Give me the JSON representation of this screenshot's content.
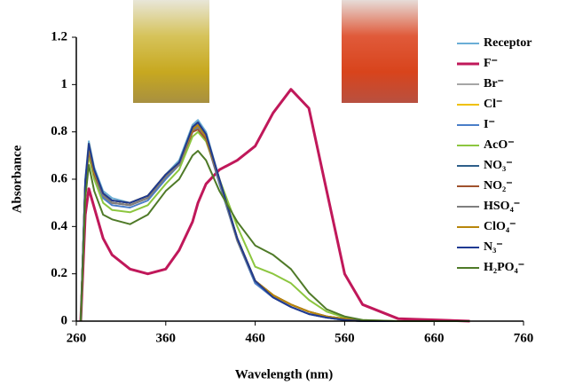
{
  "chart_data": {
    "type": "line",
    "x_label": "Wavelength (nm)",
    "y_label": "Absorbance",
    "x": [
      265,
      270,
      274,
      280,
      290,
      300,
      320,
      340,
      360,
      375,
      390,
      396,
      405,
      420,
      440,
      460,
      480,
      500,
      520,
      540,
      560,
      580,
      620,
      700
    ],
    "xlim": [
      260,
      760
    ],
    "xticks": [
      260,
      360,
      460,
      560,
      660,
      760
    ],
    "ylim": [
      0,
      1.2
    ],
    "yticks": [
      0,
      0.2,
      0.4,
      0.6,
      0.8,
      1,
      1.2
    ],
    "series": [
      {
        "name": "Receptor",
        "color": "#6aaed6",
        "values": [
          0,
          0.6,
          0.76,
          0.65,
          0.55,
          0.52,
          0.5,
          0.53,
          0.62,
          0.68,
          0.83,
          0.85,
          0.8,
          0.6,
          0.35,
          0.17,
          0.1,
          0.06,
          0.03,
          0.015,
          0.005,
          0,
          0,
          0
        ]
      },
      {
        "name": "F⁻",
        "color": "#c0185a",
        "values": [
          0,
          0.45,
          0.56,
          0.48,
          0.35,
          0.28,
          0.22,
          0.2,
          0.22,
          0.3,
          0.42,
          0.5,
          0.58,
          0.64,
          0.68,
          0.74,
          0.88,
          0.98,
          0.9,
          0.55,
          0.2,
          0.07,
          0.01,
          0
        ]
      },
      {
        "name": "Br⁻",
        "color": "#a6a6a6",
        "values": [
          0,
          0.58,
          0.74,
          0.63,
          0.53,
          0.5,
          0.49,
          0.52,
          0.61,
          0.67,
          0.81,
          0.83,
          0.78,
          0.59,
          0.34,
          0.16,
          0.1,
          0.06,
          0.03,
          0.015,
          0.005,
          0,
          0,
          0
        ]
      },
      {
        "name": "Cl⁻",
        "color": "#f0c000",
        "values": [
          0,
          0.59,
          0.75,
          0.64,
          0.54,
          0.51,
          0.5,
          0.53,
          0.62,
          0.67,
          0.82,
          0.84,
          0.79,
          0.6,
          0.35,
          0.17,
          0.11,
          0.07,
          0.04,
          0.02,
          0.01,
          0,
          0,
          0
        ]
      },
      {
        "name": "I⁻",
        "color": "#4a7ec8",
        "values": [
          0,
          0.57,
          0.73,
          0.62,
          0.52,
          0.49,
          0.48,
          0.51,
          0.6,
          0.66,
          0.8,
          0.82,
          0.77,
          0.58,
          0.34,
          0.16,
          0.1,
          0.06,
          0.03,
          0.015,
          0.005,
          0,
          0,
          0
        ]
      },
      {
        "name": "AcO⁻",
        "color": "#8cc63f",
        "values": [
          0,
          0.55,
          0.7,
          0.6,
          0.5,
          0.47,
          0.46,
          0.49,
          0.58,
          0.64,
          0.78,
          0.8,
          0.76,
          0.6,
          0.4,
          0.23,
          0.2,
          0.16,
          0.09,
          0.04,
          0.015,
          0.005,
          0,
          0
        ]
      },
      {
        "name": "NO₃⁻",
        "color": "#2e5f8a",
        "values": [
          0,
          0.59,
          0.74,
          0.64,
          0.54,
          0.51,
          0.5,
          0.53,
          0.62,
          0.67,
          0.82,
          0.84,
          0.79,
          0.6,
          0.35,
          0.17,
          0.11,
          0.07,
          0.04,
          0.02,
          0.01,
          0,
          0,
          0
        ]
      },
      {
        "name": "NO₂⁻",
        "color": "#a0522d",
        "values": [
          0,
          0.57,
          0.72,
          0.62,
          0.53,
          0.5,
          0.49,
          0.52,
          0.61,
          0.66,
          0.8,
          0.81,
          0.77,
          0.59,
          0.35,
          0.17,
          0.11,
          0.07,
          0.04,
          0.02,
          0.01,
          0,
          0,
          0
        ]
      },
      {
        "name": "HSO₄⁻",
        "color": "#7f7f7f",
        "values": [
          0,
          0.58,
          0.73,
          0.63,
          0.53,
          0.5,
          0.49,
          0.52,
          0.61,
          0.66,
          0.81,
          0.82,
          0.78,
          0.59,
          0.34,
          0.17,
          0.1,
          0.06,
          0.03,
          0.015,
          0.005,
          0,
          0,
          0
        ]
      },
      {
        "name": "ClO₄⁻",
        "color": "#b8860b",
        "values": [
          0,
          0.58,
          0.74,
          0.63,
          0.54,
          0.51,
          0.5,
          0.53,
          0.62,
          0.67,
          0.81,
          0.83,
          0.78,
          0.6,
          0.35,
          0.17,
          0.11,
          0.07,
          0.04,
          0.02,
          0.01,
          0,
          0,
          0
        ]
      },
      {
        "name": "N₃⁻",
        "color": "#1f3a93",
        "values": [
          0,
          0.59,
          0.75,
          0.64,
          0.54,
          0.51,
          0.5,
          0.53,
          0.62,
          0.67,
          0.82,
          0.84,
          0.79,
          0.6,
          0.35,
          0.17,
          0.1,
          0.06,
          0.03,
          0.015,
          0.005,
          0,
          0,
          0
        ]
      },
      {
        "name": "H₂PO₄⁻",
        "color": "#4f7a28",
        "values": [
          0,
          0.52,
          0.66,
          0.55,
          0.45,
          0.43,
          0.41,
          0.45,
          0.55,
          0.6,
          0.7,
          0.72,
          0.68,
          0.55,
          0.42,
          0.32,
          0.28,
          0.22,
          0.12,
          0.05,
          0.02,
          0.005,
          0,
          0
        ]
      }
    ]
  }
}
